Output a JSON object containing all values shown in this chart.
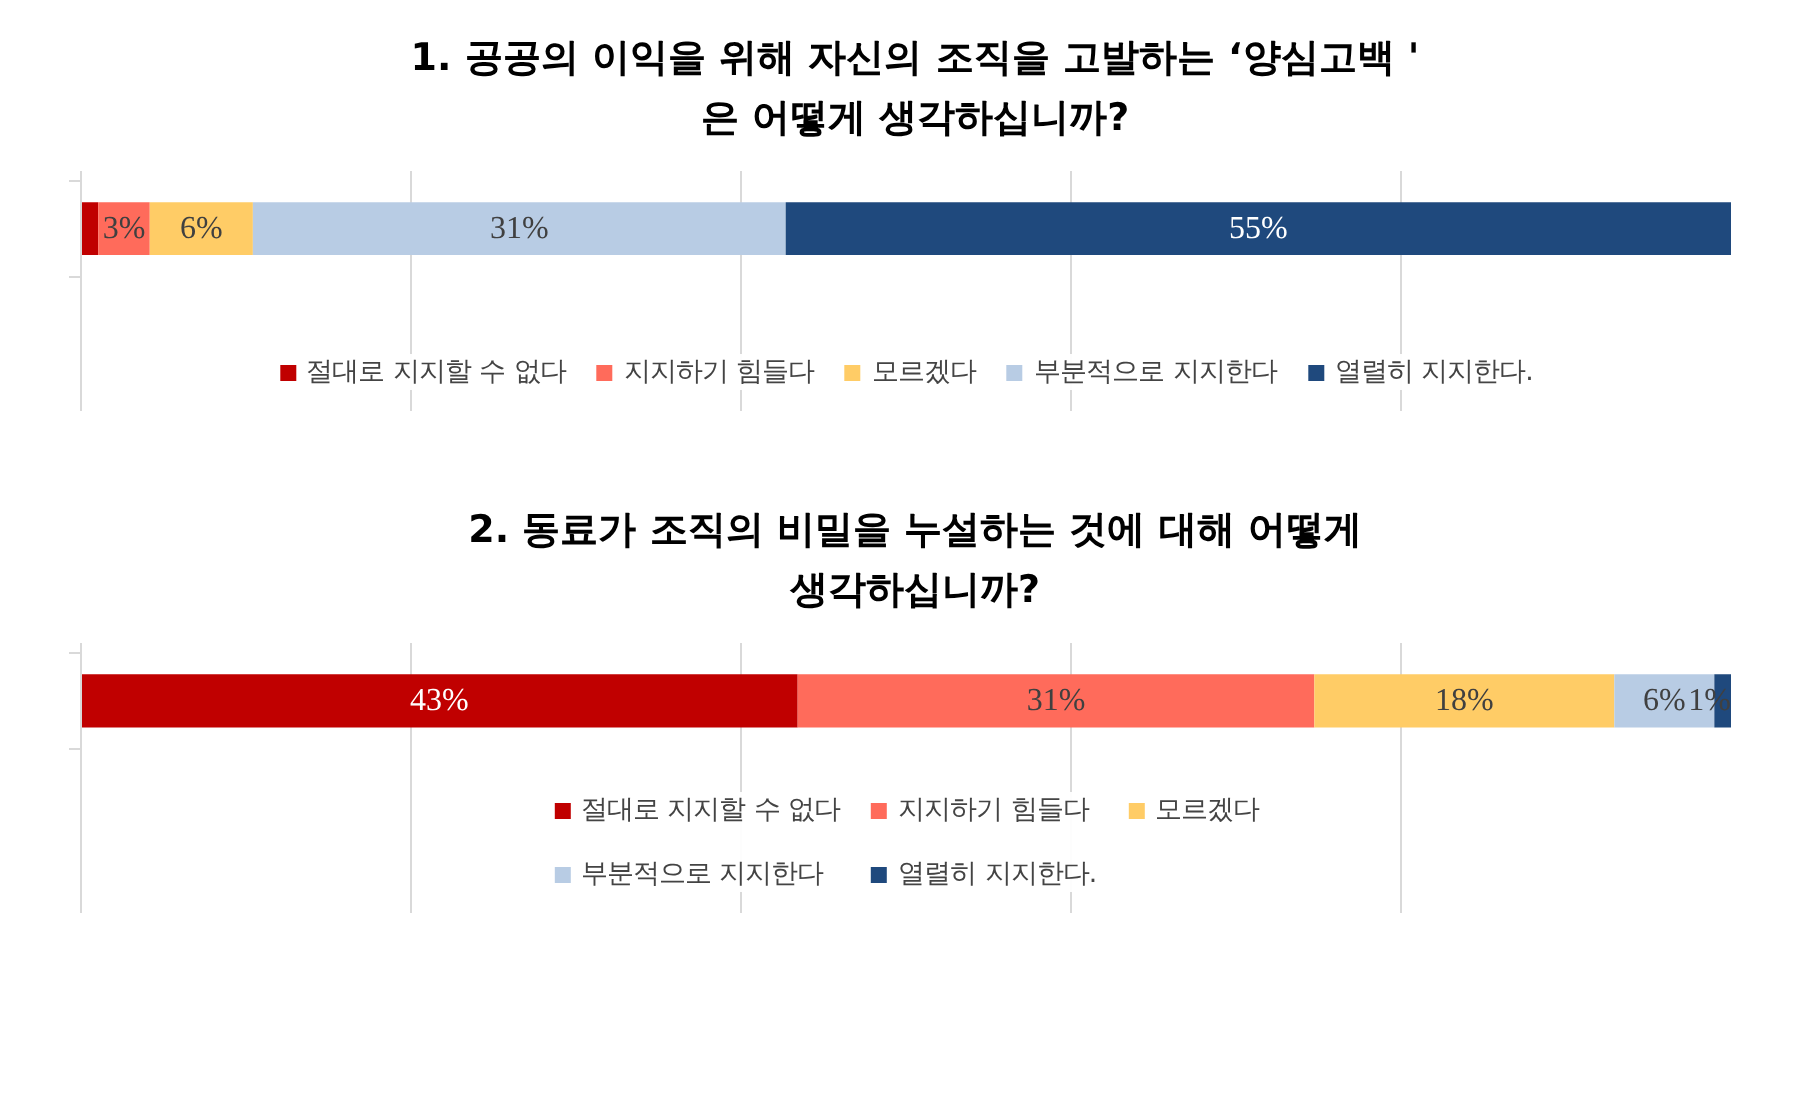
{
  "chart_data": [
    {
      "type": "bar",
      "orientation": "horizontal",
      "stacked": true,
      "title": "1. 공공의 이익을 위해 자신의 조직을 고발하는 ‘양심고백 '\n은 어떻게 생각하십니까?",
      "categories": [
        null
      ],
      "xlim": [
        0,
        96
      ],
      "xticks": [
        {
          "value": 0,
          "label": null
        },
        {
          "value": 19.2,
          "label": null
        },
        {
          "value": 38.4,
          "label": null
        },
        {
          "value": 57.6,
          "label": null
        },
        {
          "value": 76.8,
          "label": null
        }
      ],
      "grid": "x",
      "tick_labels": false,
      "legend": "bottom",
      "data_labels": false,
      "series": [
        {
          "name": "절대로 지지할 수 없다",
          "color": "#c00000",
          "values": [
            1
          ],
          "value_labels": [
            null
          ]
        },
        {
          "name": "지지하기 힘들다",
          "color": "#ff6b5b",
          "values": [
            3
          ],
          "value_labels": [
            "3%"
          ]
        },
        {
          "name": "모르겠다",
          "color": "#ffcc66",
          "values": [
            6
          ],
          "value_labels": [
            "6%"
          ]
        },
        {
          "name": "부분적으로 지지한다",
          "color": "#b8cce4",
          "values": [
            31
          ],
          "value_labels": [
            "31%"
          ]
        },
        {
          "name": "열렬히 지지한다.",
          "color": "#1f497d",
          "values": [
            55
          ],
          "value_labels": [
            "55%"
          ]
        }
      ]
    },
    {
      "type": "bar",
      "orientation": "horizontal",
      "stacked": true,
      "title": "2. 동료가 조직의 비밀을 누설하는 것에 대해 어떻게\n생각하십니까?",
      "categories": [
        null
      ],
      "xlim": [
        0,
        99
      ],
      "xticks": [
        {
          "value": 0,
          "label": null
        },
        {
          "value": 19.8,
          "label": null
        },
        {
          "value": 39.6,
          "label": null
        },
        {
          "value": 59.4,
          "label": null
        },
        {
          "value": 79.2,
          "label": null
        }
      ],
      "grid": "x",
      "tick_labels": false,
      "legend": "bottom",
      "data_labels": false,
      "series": [
        {
          "name": "절대로 지지할 수 없다",
          "color": "#c00000",
          "values": [
            43
          ],
          "value_labels": [
            "43%"
          ]
        },
        {
          "name": "지지하기 힘들다",
          "color": "#ff6b5b",
          "values": [
            31
          ],
          "value_labels": [
            "31%"
          ]
        },
        {
          "name": "모르겠다",
          "color": "#ffcc66",
          "values": [
            18
          ],
          "value_labels": [
            "18%"
          ]
        },
        {
          "name": "부분적으로 지지한다",
          "color": "#b8cce4",
          "values": [
            6
          ],
          "value_labels": [
            "6%"
          ]
        },
        {
          "name": "열렬히 지지한다.",
          "color": "#1f497d",
          "values": [
            1
          ],
          "value_labels": [
            "1%"
          ]
        }
      ]
    }
  ]
}
